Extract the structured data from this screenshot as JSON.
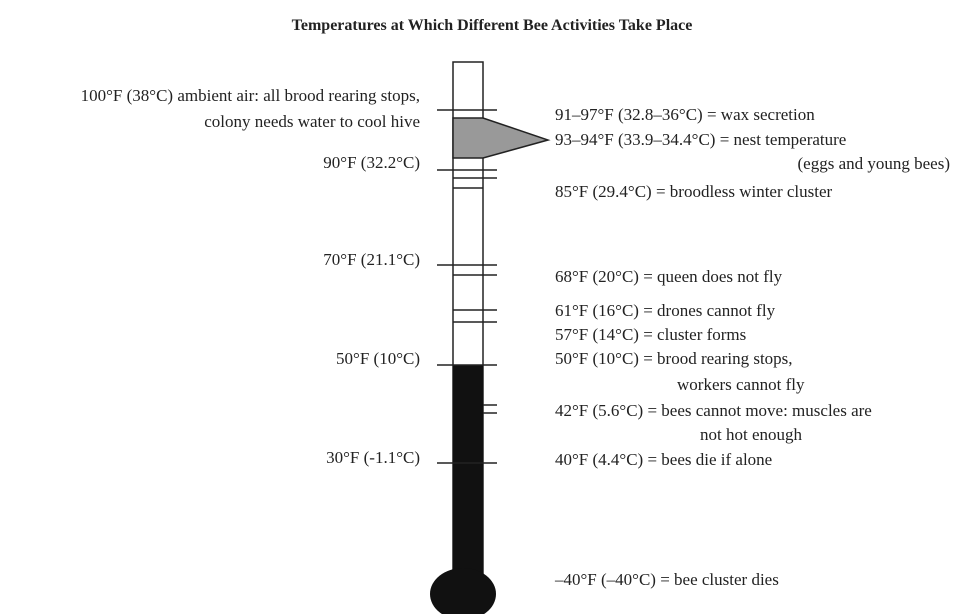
{
  "title": "Temperatures at Which Different Bee Activities Take Place",
  "left_labels": [
    [
      "100°F (38°C) ambient air: all brood rearing stops,",
      "colony needs water to cool hive"
    ],
    [
      "90°F (32.2°C)"
    ],
    [
      "70°F (21.1°C)"
    ],
    [
      "50°F (10°C)"
    ],
    [
      "30°F (-1.1°C)"
    ]
  ],
  "right_labels": [
    [
      "91–97°F (32.8–36°C) = wax secretion"
    ],
    [
      "93–94°F (33.9–34.4°C) = nest temperature",
      "(eggs and young bees)"
    ],
    [
      "85°F (29.4°C) = broodless winter cluster"
    ],
    [
      "68°F (20°C) = queen does not fly"
    ],
    [
      "61°F (16°C) = drones cannot fly"
    ],
    [
      "57°F (14°C) = cluster forms"
    ],
    [
      "50°F (10°C) = brood rearing stops,",
      "workers cannot fly"
    ],
    [
      "42°F (5.6°C) = bees cannot move: muscles are",
      "not hot enough"
    ],
    [
      "40°F (4.4°C) = bees die if alone"
    ],
    [
      "–40°F (–40°C) = bee cluster dies"
    ]
  ]
}
